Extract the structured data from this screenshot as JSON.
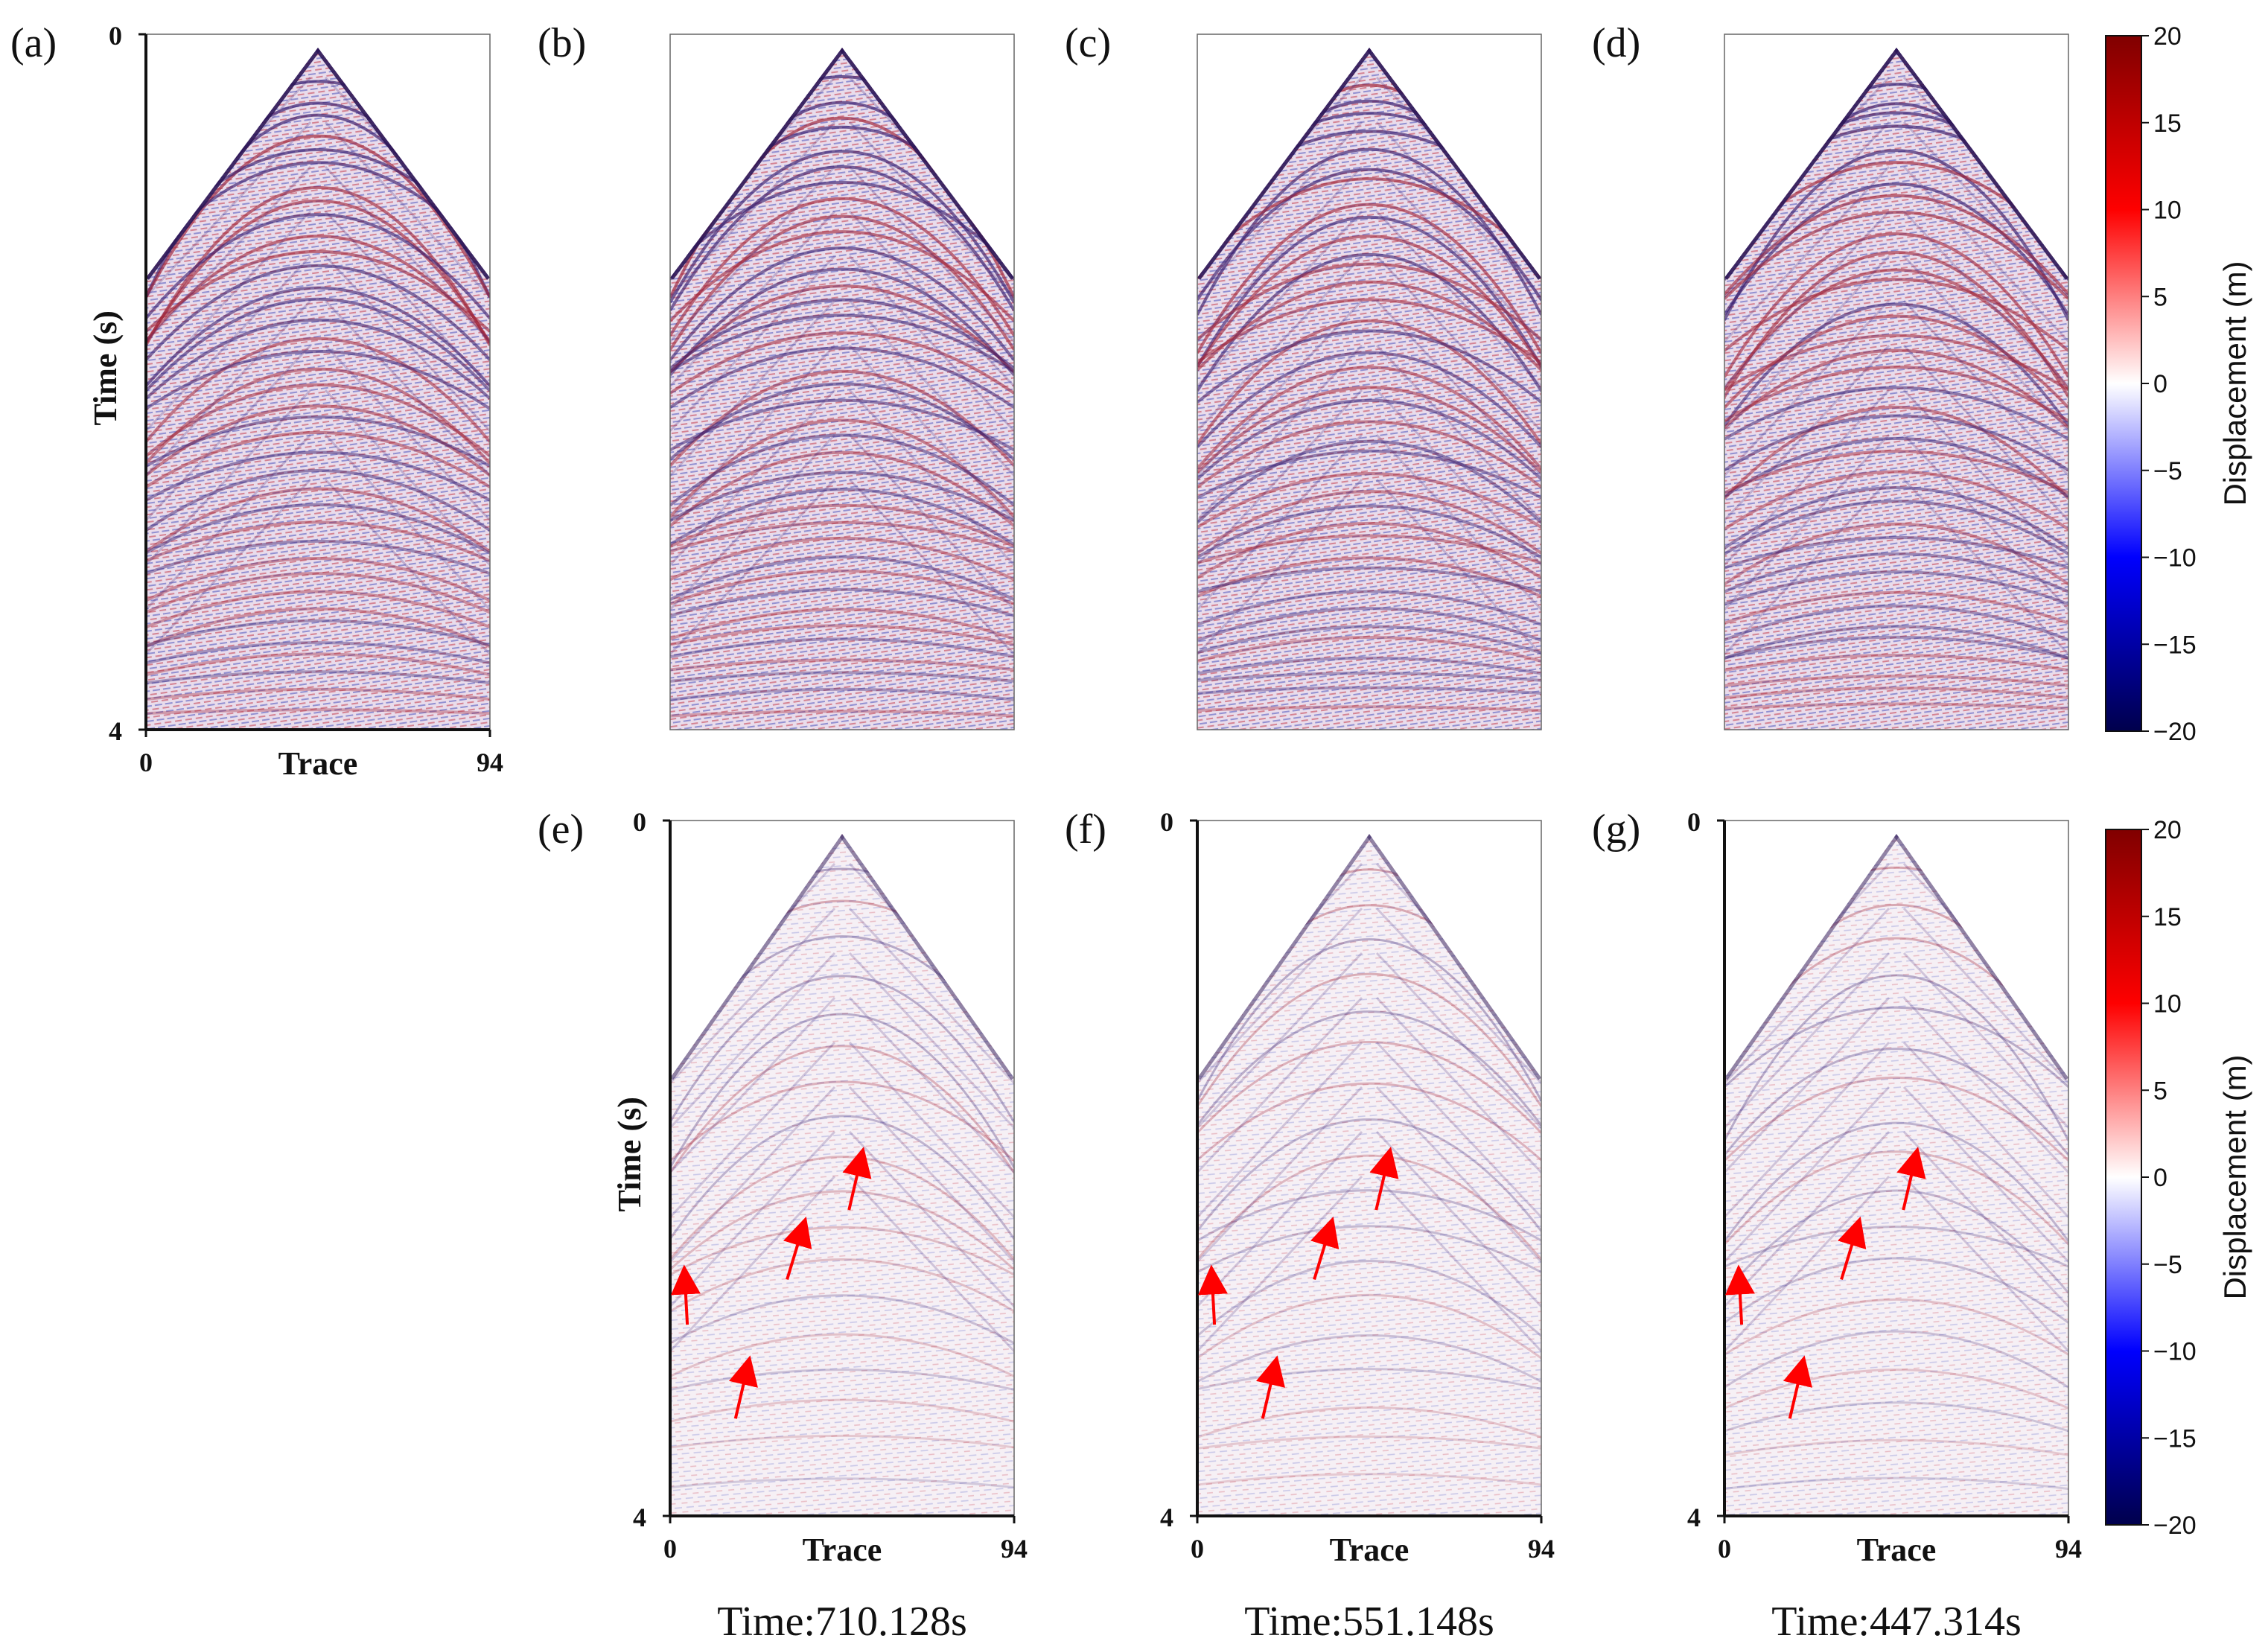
{
  "chart_data": {
    "type": "heatmap",
    "description_free": true,
    "colormap": {
      "name": "seismic",
      "low_color": "#00004c",
      "mid_color": "#ffffff",
      "high_color": "#800000",
      "vmin": -20,
      "vmax": 20
    },
    "x_axis": {
      "label": "Trace",
      "range": [
        0,
        94
      ],
      "ticks": [
        "0",
        "94"
      ]
    },
    "y_axis": {
      "label": "Time (s)",
      "range": [
        0,
        4
      ],
      "ticks": [
        "0",
        "4"
      ]
    },
    "colorbar": {
      "label": "Displacement (m)",
      "ticks": [
        "20",
        "15",
        "10",
        "5",
        "0",
        "−5",
        "−10",
        "−15",
        "−20"
      ]
    },
    "panels": [
      {
        "id": "a",
        "label": "(a)",
        "kind": "full"
      },
      {
        "id": "b",
        "label": "(b)",
        "kind": "full"
      },
      {
        "id": "c",
        "label": "(c)",
        "kind": "full"
      },
      {
        "id": "d",
        "label": "(d)",
        "kind": "full"
      },
      {
        "id": "e",
        "label": "(e)",
        "kind": "residual",
        "caption": "Time:710.128s"
      },
      {
        "id": "f",
        "label": "(f)",
        "kind": "residual",
        "caption": "Time:551.148s"
      },
      {
        "id": "g",
        "label": "(g)",
        "kind": "residual",
        "caption": "Time:447.314s"
      }
    ],
    "annotations": {
      "arrows_per_residual_panel": 4,
      "arrow_color": "#ff0000"
    }
  }
}
